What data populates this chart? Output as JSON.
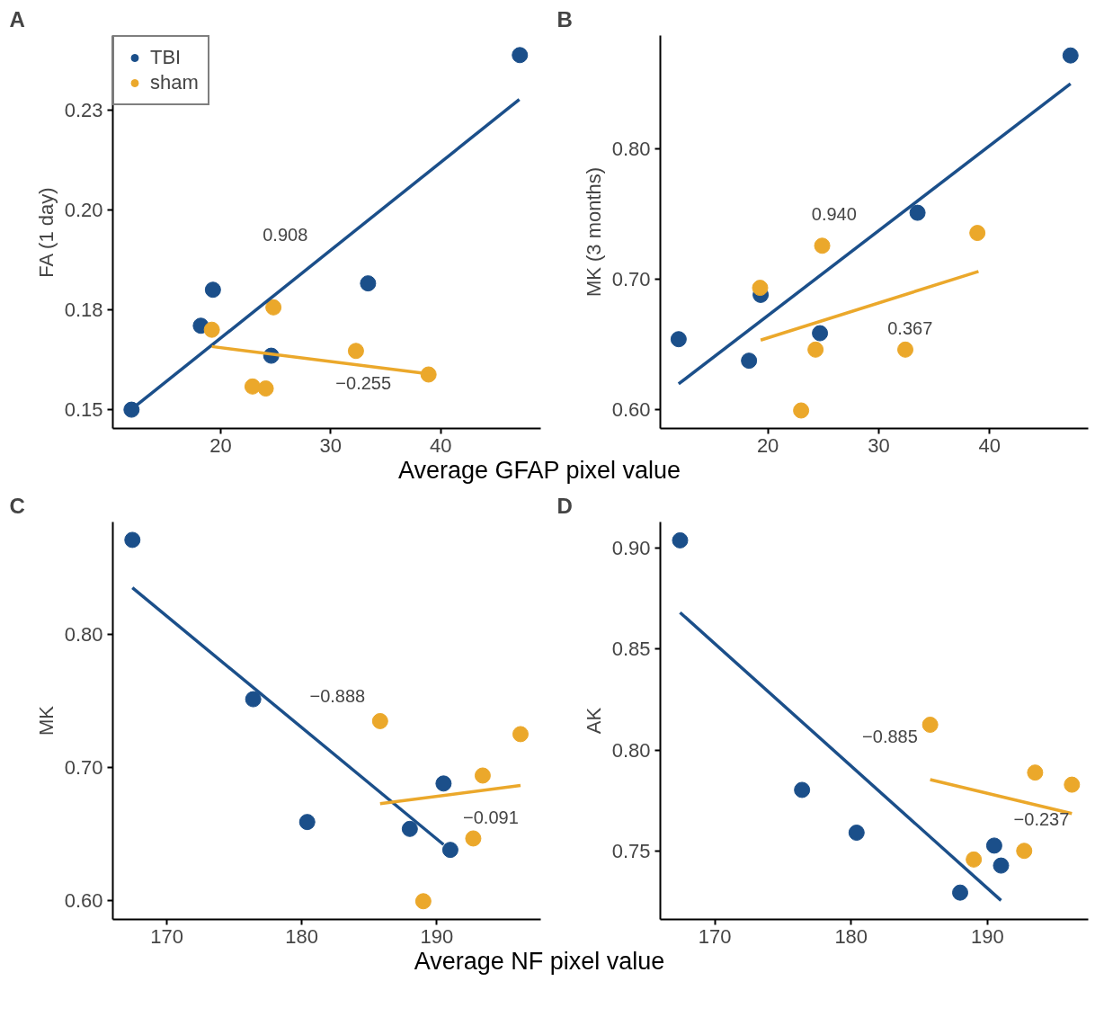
{
  "chart_data": [
    {
      "type": "scatter",
      "title": "A",
      "ylabel": "FA (1 day)",
      "xlabel": "Average GFAP pixel value",
      "xlim": [
        10.2,
        49.1
      ],
      "ylim": [
        0.1453,
        0.2436
      ],
      "xticks": [
        20,
        30,
        40
      ],
      "yticks": [
        0.15,
        {
          "value": 0.175,
          "label": "0.18"
        },
        {
          "value": 0.2,
          "label": "0.20"
        },
        {
          "value": 0.225,
          "label": "0.23"
        }
      ],
      "legend": "top left",
      "series": [
        {
          "name": "TBI",
          "marker": "circle",
          "color": "#1b4f8a",
          "x": [
            11.9,
            18.2,
            19.3,
            24.6,
            33.4,
            47.2
          ],
          "values": [
            0.15,
            0.171,
            0.18,
            0.1635,
            0.1816,
            0.2387
          ]
        },
        {
          "name": "sham",
          "marker": "circle",
          "color": "#eba82b",
          "x": [
            19.2,
            24.8,
            22.9,
            24.1,
            32.3,
            38.9
          ],
          "values": [
            0.17,
            0.1756,
            0.1558,
            0.1553,
            0.1647,
            0.1588
          ]
        },
        {
          "type": "line",
          "color": "#1b4f8a",
          "x": [
            11.95,
            47.15
          ],
          "values": [
            0.1502,
            0.2276
          ]
        },
        {
          "type": "line",
          "color": "#eba82b",
          "x": [
            19.2,
            39.4
          ],
          "values": [
            0.1658,
            0.1588
          ]
        }
      ],
      "annotations": [
        "0.908",
        "−0.255"
      ]
    },
    {
      "type": "scatter",
      "title": "B",
      "ylabel": "MK (3 months)",
      "xlim": [
        10.3,
        48.9
      ],
      "ylim": [
        0.5855,
        0.887
      ],
      "xticks": [
        20,
        30,
        40
      ],
      "yticks": [
        {
          "value": 0.6,
          "label": "0.60"
        },
        {
          "value": 0.7,
          "label": "0.70"
        },
        {
          "value": 0.8,
          "label": "0.80"
        }
      ],
      "series": [
        {
          "marker": "circle",
          "color": "#1b4f8a",
          "x": [
            11.95,
            18.3,
            19.35,
            24.7,
            33.5,
            47.3
          ],
          "values": [
            0.654,
            0.6375,
            0.688,
            0.6586,
            0.751,
            0.8717
          ]
        },
        {
          "marker": "circle",
          "color": "#eba82b",
          "x": [
            19.3,
            24.9,
            23.0,
            24.3,
            32.4,
            38.9
          ],
          "values": [
            0.6934,
            0.7257,
            0.5993,
            0.646,
            0.646,
            0.7355
          ]
        },
        {
          "type": "line",
          "color": "#1b4f8a",
          "x": [
            11.95,
            47.3
          ],
          "values": [
            0.6197,
            0.85
          ]
        },
        {
          "type": "line",
          "color": "#eba82b",
          "x": [
            19.35,
            39.0
          ],
          "values": [
            0.6533,
            0.706
          ]
        }
      ],
      "annotations": [
        "0.940",
        "0.367"
      ]
    },
    {
      "type": "scatter",
      "title": "C",
      "ylabel": "MK",
      "xlabel": "Average NF pixel value",
      "xlim": [
        166.0,
        197.7
      ],
      "ylim": [
        0.5856,
        0.885
      ],
      "xticks": [
        170,
        180,
        190
      ],
      "yticks": [
        {
          "value": 0.6,
          "label": "0.60"
        },
        {
          "value": 0.7,
          "label": "0.70"
        },
        {
          "value": 0.8,
          "label": "0.80"
        }
      ],
      "series": [
        {
          "marker": "circle",
          "color": "#1b4f8a",
          "x": [
            167.45,
            176.4,
            180.4,
            188.0,
            190.5,
            191.0
          ],
          "values": [
            0.8715,
            0.7515,
            0.659,
            0.6538,
            0.688,
            0.638
          ]
        },
        {
          "marker": "circle",
          "color": "#eba82b",
          "x": [
            185.8,
            196.2,
            193.4,
            192.7,
            189.0
          ],
          "values": [
            0.735,
            0.7252,
            0.694,
            0.6466,
            0.5993
          ]
        },
        {
          "type": "line",
          "color": "#1b4f8a",
          "x": [
            167.45,
            190.5
          ],
          "values": [
            0.8354,
            0.642
          ]
        },
        {
          "type": "line",
          "color": "#eba82b",
          "x": [
            185.8,
            196.2
          ],
          "values": [
            0.6728,
            0.6866
          ]
        }
      ],
      "annotations": [
        "−0.888",
        "−0.091"
      ]
    },
    {
      "type": "scatter",
      "title": "D",
      "ylabel": "AK",
      "xlim": [
        166.0,
        197.4
      ],
      "ylim": [
        0.716,
        0.913
      ],
      "xticks": [
        170,
        180,
        190
      ],
      "yticks": [
        {
          "value": 0.75,
          "label": "0.75"
        },
        {
          "value": 0.8,
          "label": "0.80"
        },
        {
          "value": 0.85,
          "label": "0.85"
        },
        {
          "value": 0.9,
          "label": "0.90"
        }
      ],
      "series": [
        {
          "marker": "circle",
          "color": "#1b4f8a",
          "x": [
            167.45,
            176.4,
            180.4,
            188.0,
            190.5,
            191.0
          ],
          "values": [
            0.9039,
            0.7802,
            0.759,
            0.7293,
            0.7526,
            0.7427
          ]
        },
        {
          "marker": "circle",
          "color": "#eba82b",
          "x": [
            185.8,
            193.5,
            196.2,
            189.0,
            192.7
          ],
          "values": [
            0.8125,
            0.7888,
            0.7828,
            0.7457,
            0.75
          ]
        },
        {
          "type": "line",
          "color": "#1b4f8a",
          "x": [
            167.45,
            191.0
          ],
          "values": [
            0.8681,
            0.7254
          ]
        },
        {
          "type": "line",
          "color": "#eba82b",
          "x": [
            185.8,
            196.2
          ],
          "values": [
            0.7853,
            0.7685
          ]
        }
      ],
      "annotations": [
        "−0.885",
        "−0.237"
      ]
    }
  ]
}
